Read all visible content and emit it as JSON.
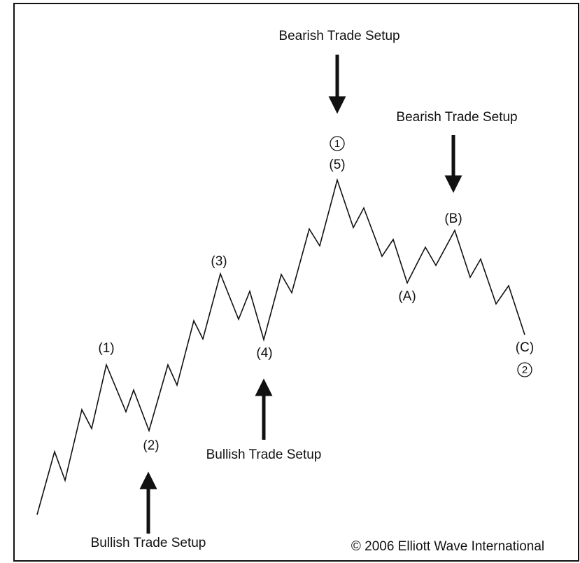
{
  "wave_labels": [
    "(1)",
    "(2)",
    "(3)",
    "(4)",
    "(5)",
    "(A)",
    "(B)",
    "(C)"
  ],
  "degree_labels": [
    "1",
    "2"
  ],
  "setups": [
    "Bearish Trade Setup",
    "Bearish Trade Setup",
    "Bullish Trade Setup",
    "Bullish Trade Setup"
  ],
  "copyright": "© 2006 Elliott Wave International"
}
